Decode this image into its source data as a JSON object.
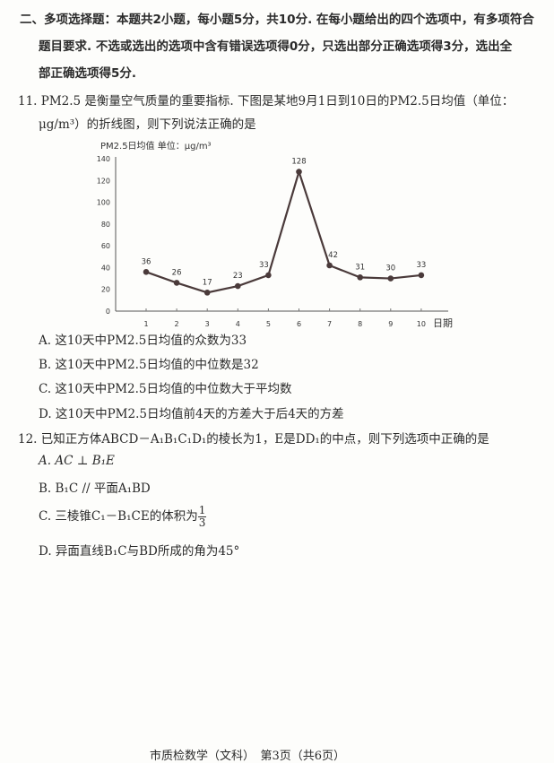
{
  "section": {
    "lines": [
      "二、多项选择题：本题共2小题，每小题5分，共10分. 在每小题给出的四个选项中，有多项符合",
      "题目要求. 不选或选出的选项中含有错误选项得0分，只选出部分正确选项得3分，选出全",
      "部正确选项得5分."
    ]
  },
  "q11": {
    "stem_lines": [
      "11. PM2.5 是衡量空气质量的重要指标. 下图是某地9月1日到10日的PM2.5日均值（单位：",
      "μg/m³）的折线图，则下列说法正确的是"
    ],
    "options": [
      "A. 这10天中PM2.5日均值的众数为33",
      "B. 这10天中PM2.5日均值的中位数是32",
      "C. 这10天中PM2.5日均值的中位数大于平均数",
      "D. 这10天中PM2.5日均值前4天的方差大于后4天的方差"
    ]
  },
  "chart_data": {
    "type": "line",
    "title": "PM2.5日均值 单位：μg/m³",
    "xlabel": "日期",
    "ylabel": "",
    "x": [
      1,
      2,
      3,
      4,
      5,
      6,
      7,
      8,
      9,
      10
    ],
    "values": [
      36,
      26,
      17,
      23,
      33,
      128,
      42,
      31,
      30,
      33
    ],
    "ylim": [
      0,
      140
    ],
    "yticks": [
      0,
      20,
      40,
      60,
      80,
      100,
      120,
      140
    ],
    "data_labels": true,
    "grid": false,
    "line_color": "#4a3a3a"
  },
  "q12": {
    "stem": "12. 已知正方体ABCD－A₁B₁C₁D₁的棱长为1，E是DD₁的中点，则下列选项中正确的是",
    "options": {
      "A": "A. AC ⊥ B₁E",
      "B": "B. B₁C // 平面A₁BD",
      "C_text": "C. 三棱锥C₁－B₁CE的体积为",
      "C_num": "1",
      "C_den": "3",
      "D": "D. 异面直线B₁C与BD所成的角为45°"
    }
  },
  "footer": "市质检数学（文科）　第3页（共6页）"
}
